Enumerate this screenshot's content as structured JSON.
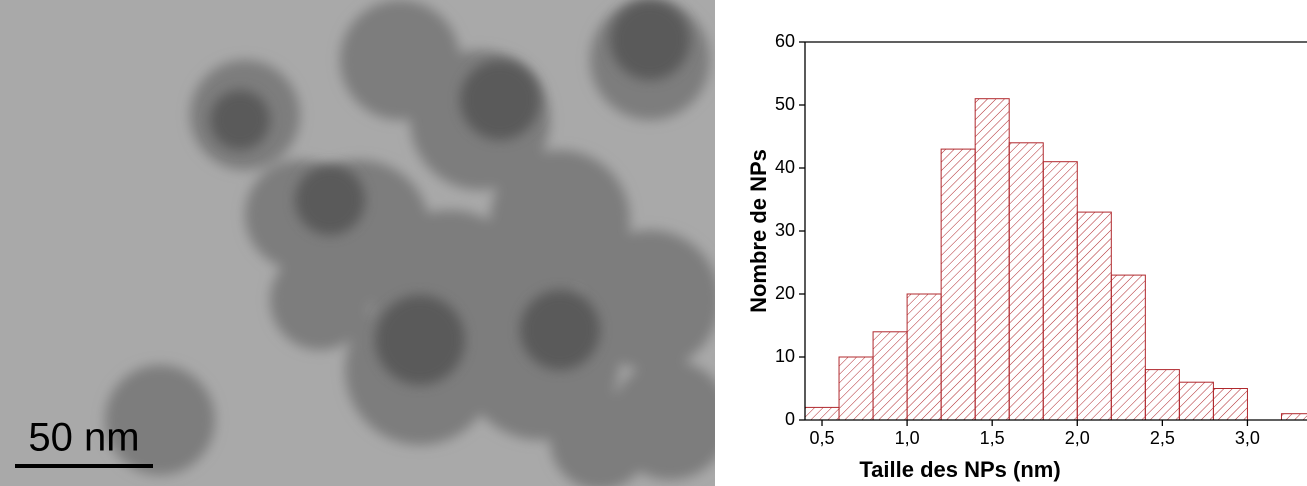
{
  "micrograph": {
    "scale_bar": "50 nm"
  },
  "chart_data": {
    "type": "histogram",
    "xlabel": "Taille des NPs (nm)",
    "ylabel": "Nombre de NPs",
    "bins": [
      0.4,
      0.6,
      0.8,
      1.0,
      1.2,
      1.4,
      1.6,
      1.8,
      2.0,
      2.2,
      2.4,
      2.6,
      2.8,
      3.0,
      3.2,
      3.4
    ],
    "values": [
      2,
      10,
      14,
      20,
      43,
      51,
      44,
      41,
      33,
      23,
      8,
      6,
      5,
      0,
      1
    ],
    "color": "#b0282d",
    "xlim": [
      0.4,
      3.35
    ],
    "xticks": [
      {
        "value": 0.5,
        "label": "0,5"
      },
      {
        "value": 1.0,
        "label": "1,0"
      },
      {
        "value": 1.5,
        "label": "1,5"
      },
      {
        "value": 2.0,
        "label": "2,0"
      },
      {
        "value": 2.5,
        "label": "2,5"
      },
      {
        "value": 3.0,
        "label": "3,0"
      }
    ],
    "ylim": [
      0,
      60
    ],
    "yticks": [
      0,
      10,
      20,
      30,
      40,
      50,
      60
    ]
  }
}
